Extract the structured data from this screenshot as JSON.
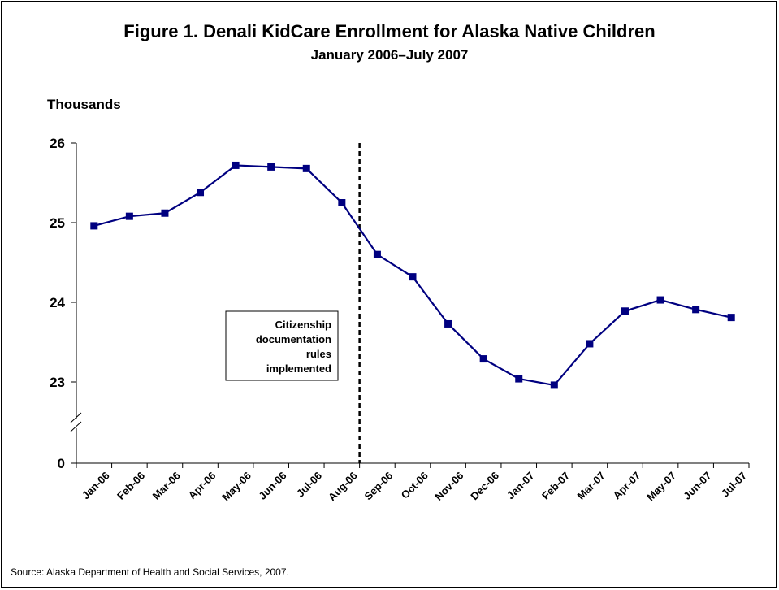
{
  "figure": {
    "title": "Figure 1. Denali KidCare Enrollment for Alaska Native Children",
    "subtitle": "January 2006–July 2007",
    "source": "Source: Alaska Department of Health and Social Services, 2007."
  },
  "chart_data": {
    "type": "line",
    "title": "Figure 1. Denali KidCare Enrollment for Alaska Native Children",
    "subtitle": "January 2006–July 2007",
    "ylabel": "Thousands",
    "xlabel": "",
    "categories": [
      "Jan-06",
      "Feb-06",
      "Mar-06",
      "Apr-06",
      "May-06",
      "Jun-06",
      "Jul-06",
      "Aug-06",
      "Sep-06",
      "Oct-06",
      "Nov-06",
      "Dec-06",
      "Jan-07",
      "Feb-07",
      "Mar-07",
      "Apr-07",
      "May-07",
      "Jun-07",
      "Jul-07"
    ],
    "series": [
      {
        "values": [
          24.96,
          25.08,
          25.12,
          25.38,
          25.72,
          25.7,
          25.68,
          25.25,
          24.6,
          24.32,
          23.73,
          23.29,
          23.04,
          22.96,
          23.48,
          23.89,
          24.03,
          23.91,
          23.81
        ],
        "color": "#000080"
      }
    ],
    "yticks": [
      0,
      23,
      24,
      25,
      26
    ],
    "ylim": [
      22.0,
      26.0
    ],
    "axis_break": "between 0 and 23",
    "grid": false,
    "legend": "none",
    "annotation": {
      "text_lines": [
        "Citizenship",
        "documentation",
        "rules",
        "implemented"
      ],
      "marker": "dashed vertical line between Aug-06 and Sep-06",
      "x_category_index": 7.5
    }
  }
}
